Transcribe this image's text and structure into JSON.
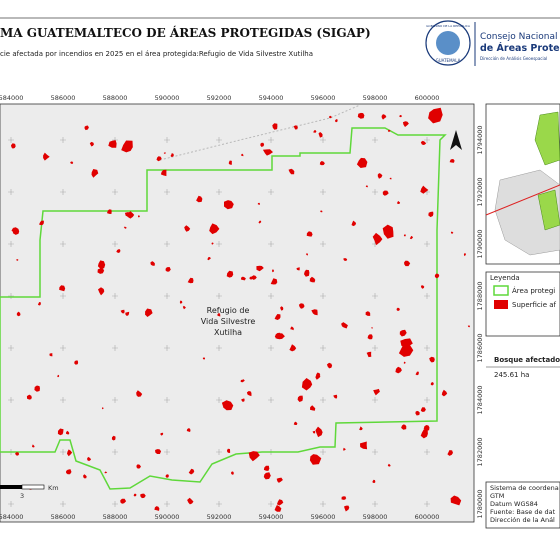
{
  "header": {
    "title": "MA GUATEMALTECO DE ÁREAS PROTEGIDAS  (SIGAP)",
    "subtitle": "cie afectada por incendios en 2025 en el área protegida:Refugio de Vida Silvestre Xutilha",
    "logo": {
      "seal_top": "GOBIERNO DE LA REPÚBLICA",
      "seal_bottom": "GUATEMALA",
      "line1": "Consejo Nacional",
      "line2": "de Áreas Protegidas",
      "line3": "Dirección de Análisis Geoespacial"
    }
  },
  "map": {
    "xticks": [
      "584000",
      "586000",
      "588000",
      "590000",
      "592000",
      "594000",
      "596000",
      "598000",
      "600000"
    ],
    "yticks": [
      "1794000",
      "1792000",
      "1790000",
      "1788000",
      "1786000",
      "1784000",
      "1782000",
      "1780000"
    ],
    "area_label": [
      "Refugio de",
      "Vida Silvestre",
      "Xutilha"
    ],
    "scale": {
      "unit": "Km",
      "value": "3"
    }
  },
  "legend": {
    "title": "Leyenda",
    "items": [
      "Área protegi",
      "Superficie af"
    ]
  },
  "summary": {
    "label": "Bosque afectado",
    "value": "245.61 ha"
  },
  "footer": [
    "Sistema de coordena",
    "GTM",
    "Datum WGS84",
    "Fuente: Base de dat",
    "Dirección de la Anál"
  ]
}
